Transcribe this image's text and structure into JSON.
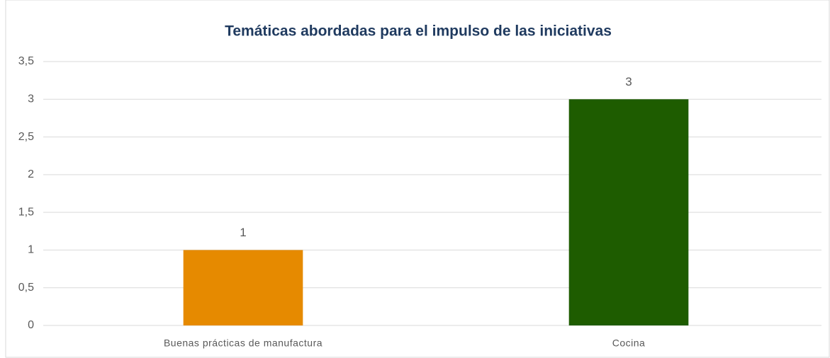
{
  "chart_data": {
    "type": "bar",
    "title": "Temáticas abordadas para el impulso de las iniciativas",
    "categories": [
      "Buenas prácticas de manufactura",
      "Cocina"
    ],
    "values": [
      1,
      3
    ],
    "colors": [
      "#e68a00",
      "#1e5c00"
    ],
    "ylim": [
      0,
      3.5
    ],
    "yticks": [
      0,
      {
        "value": 0.5,
        "label": "0,5"
      },
      1,
      {
        "value": 1.5,
        "label": "1,5"
      },
      2,
      {
        "value": 2.5,
        "label": "2,5"
      },
      3,
      {
        "value": 3.5,
        "label": "3,5"
      }
    ],
    "grid": true
  }
}
